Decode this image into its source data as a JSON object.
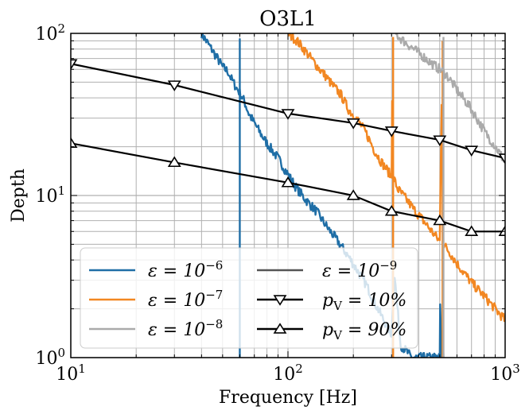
{
  "chart_data": {
    "type": "line",
    "title": "O3L1",
    "xlabel": "Frequency [Hz]",
    "ylabel": "Depth",
    "xscale": "log",
    "yscale": "log",
    "xlim": [
      10,
      1000
    ],
    "ylim": [
      1,
      100
    ],
    "grid": true,
    "legend_position": "lower-left, two columns",
    "xticks": [
      {
        "base": "10",
        "exp": "1"
      },
      {
        "base": "10",
        "exp": "2"
      },
      {
        "base": "10",
        "exp": "3"
      }
    ],
    "yticks": [
      {
        "base": "10",
        "exp": "0"
      },
      {
        "base": "10",
        "exp": "1"
      },
      {
        "base": "10",
        "exp": "2"
      }
    ],
    "series": [
      {
        "name": "ε = 10−6",
        "legend_base": "ε = 10",
        "legend_exp": "−6",
        "color": "#1f6ea6",
        "marker": "none",
        "x": [
          40,
          42,
          45,
          48,
          50,
          53,
          55,
          58,
          60,
          63,
          66,
          70,
          75,
          80,
          90,
          100,
          110,
          120,
          135,
          150,
          170,
          190,
          210,
          230,
          250,
          270,
          290,
          300,
          310,
          330,
          350,
          370,
          500,
          502,
          505,
          510,
          515,
          520
        ],
        "y": [
          100,
          90,
          78,
          68,
          62,
          58,
          52,
          46,
          43,
          38,
          32,
          28,
          24,
          21,
          17,
          13.5,
          11,
          9.5,
          8,
          6.5,
          5.2,
          4.2,
          3.4,
          2.8,
          2.2,
          1.8,
          1.5,
          1.4,
          3.2,
          1.2,
          1.1,
          1.0,
          1.0,
          2.2,
          1.6,
          1.0,
          1.5,
          1.0
        ],
        "peaks": [
          {
            "x": 60,
            "y": 93
          }
        ]
      },
      {
        "name": "ε = 10−7",
        "legend_base": "ε = 10",
        "legend_exp": "−7",
        "color": "#f28722",
        "marker": "none",
        "x": [
          100,
          110,
          120,
          130,
          140,
          150,
          160,
          175,
          190,
          210,
          230,
          250,
          270,
          290,
          300,
          302,
          305,
          320,
          350,
          380,
          420,
          460,
          500,
          510,
          520,
          560,
          600,
          650,
          700,
          800,
          900,
          1000
        ],
        "y": [
          100,
          90,
          78,
          68,
          60,
          54,
          48,
          42,
          34,
          29,
          24,
          19,
          16,
          14,
          13,
          40,
          13,
          11,
          9.5,
          8.2,
          7,
          6,
          5.2,
          38,
          5,
          4.4,
          3.8,
          3.3,
          2.9,
          2.4,
          2.0,
          1.7
        ],
        "peaks": [
          {
            "x": 305,
            "y": 95
          },
          {
            "x": 515,
            "y": 90
          }
        ]
      },
      {
        "name": "ε = 10−8",
        "legend_base": "ε = 10",
        "legend_exp": "−8",
        "color": "#aaaaaa",
        "marker": "none",
        "x": [
          310,
          340,
          380,
          420,
          460,
          500,
          540,
          580,
          620,
          680,
          740,
          800,
          880,
          950,
          1000
        ],
        "y": [
          100,
          90,
          80,
          72,
          65,
          60,
          55,
          48,
          42,
          36,
          30,
          25,
          21,
          18,
          16
        ],
        "peaks": [
          {
            "x": 520,
            "y": 95
          }
        ]
      },
      {
        "name": "ε = 10−9",
        "legend_base": "ε = 10",
        "legend_exp": "−9",
        "color": "#555555",
        "marker": "none",
        "x": [],
        "y": []
      },
      {
        "name": "pV = 10%",
        "legend_base": "p",
        "legend_sub": "V",
        "legend_rest": " = 10%",
        "color": "#000000",
        "marker": "triangle-down",
        "x": [
          10,
          30,
          100,
          200,
          300,
          500,
          700,
          1000
        ],
        "y": [
          65,
          48,
          32,
          28,
          25,
          22,
          19,
          17
        ]
      },
      {
        "name": "pV = 90%",
        "legend_base": "p",
        "legend_sub": "V",
        "legend_rest": " = 90%",
        "color": "#000000",
        "marker": "triangle-up",
        "x": [
          10,
          30,
          100,
          200,
          300,
          500,
          700,
          1000
        ],
        "y": [
          21,
          16,
          12,
          10,
          8,
          7,
          6,
          6
        ]
      }
    ]
  }
}
